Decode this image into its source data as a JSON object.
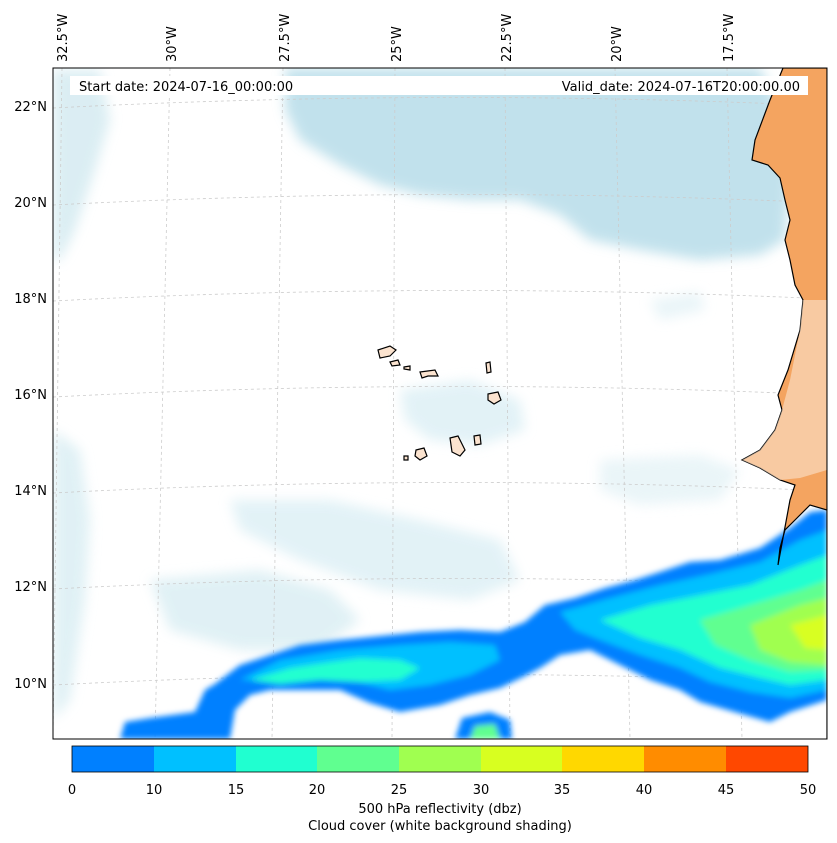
{
  "header": {
    "start_date": "Start date: 2024-07-16_00:00:00",
    "valid_date": "Valid_date: 2024-07-16T20:00:00.00"
  },
  "lon_labels": [
    "32.5°W",
    "30°W",
    "27.5°W",
    "25°W",
    "22.5°W",
    "20°W",
    "17.5°W"
  ],
  "lat_labels": [
    "22°N",
    "20°N",
    "18°N",
    "16°N",
    "14°N",
    "12°N",
    "10°N"
  ],
  "colorbar": {
    "ticks": [
      "0",
      "10",
      "15",
      "20",
      "25",
      "30",
      "35",
      "40",
      "45",
      "50"
    ],
    "colors": [
      "#0080ff",
      "#00c0ff",
      "#20ffd0",
      "#60ff90",
      "#a0ff50",
      "#d8ff20",
      "#ffd800",
      "#ff8c00",
      "#ff4800"
    ],
    "label": "500 hPa reflectivity (dbz)",
    "sublabel": "Cloud cover (white background shading)"
  },
  "colors": {
    "land_africa": "#f4a460",
    "islands": "#fbe3cf",
    "cloud": "#add8e6",
    "grid": "#cccccc"
  }
}
